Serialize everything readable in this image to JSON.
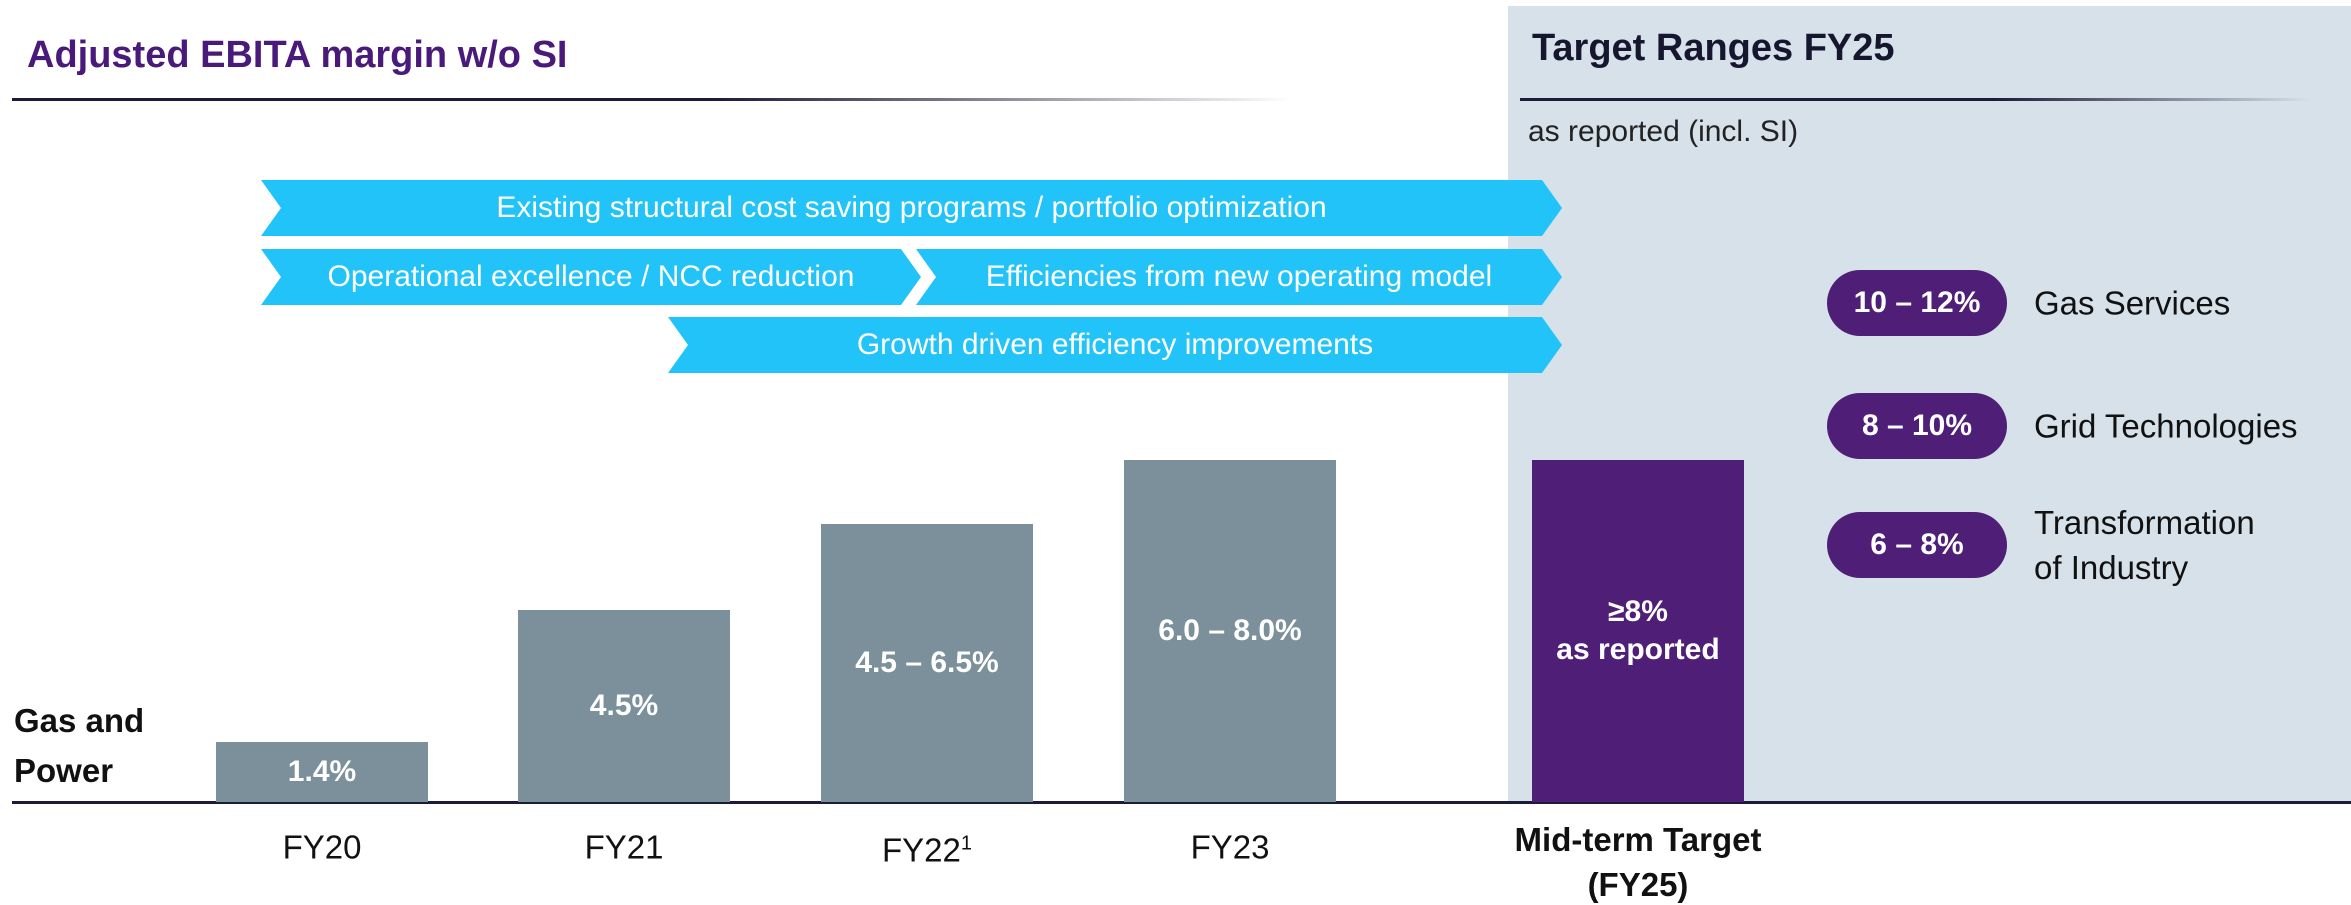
{
  "title": "Adjusted EBITA margin w/o SI",
  "row_label": "Gas and Power",
  "initiatives": [
    {
      "text": "Existing structural cost saving programs / portfolio optimization"
    },
    {
      "text": "Operational excellence / NCC reduction"
    },
    {
      "text": "Efficiencies from new operating model"
    },
    {
      "text": "Growth driven efficiency improvements"
    }
  ],
  "chart_data": {
    "type": "bar",
    "categories": [
      "FY20",
      "FY21",
      "FY22",
      "FY23",
      "Mid-term Target (FY25)"
    ],
    "category_superscripts": [
      null,
      null,
      "1",
      null,
      null
    ],
    "values": [
      1.4,
      4.5,
      6.5,
      8.0,
      8
    ],
    "value_labels": [
      "1.4%",
      "4.5%",
      "4.5 – 6.5%",
      "6.0 – 8.0%",
      "≥8%"
    ],
    "value_notes": [
      null,
      null,
      null,
      null,
      "as reported"
    ],
    "colors": [
      "#7b909b",
      "#7b909b",
      "#7b909b",
      "#7b909b",
      "#4f1f77"
    ],
    "ylim": [
      0,
      10
    ]
  },
  "target_panel": {
    "title": "Target Ranges FY25",
    "subtitle": "as reported (incl. SI)",
    "targets": [
      {
        "range": "10 – 12%",
        "segment": "Gas Services"
      },
      {
        "range": "8 – 10%",
        "segment": "Grid Technologies"
      },
      {
        "range": "6 – 8%",
        "segment": "Transformation of Industry"
      }
    ]
  }
}
